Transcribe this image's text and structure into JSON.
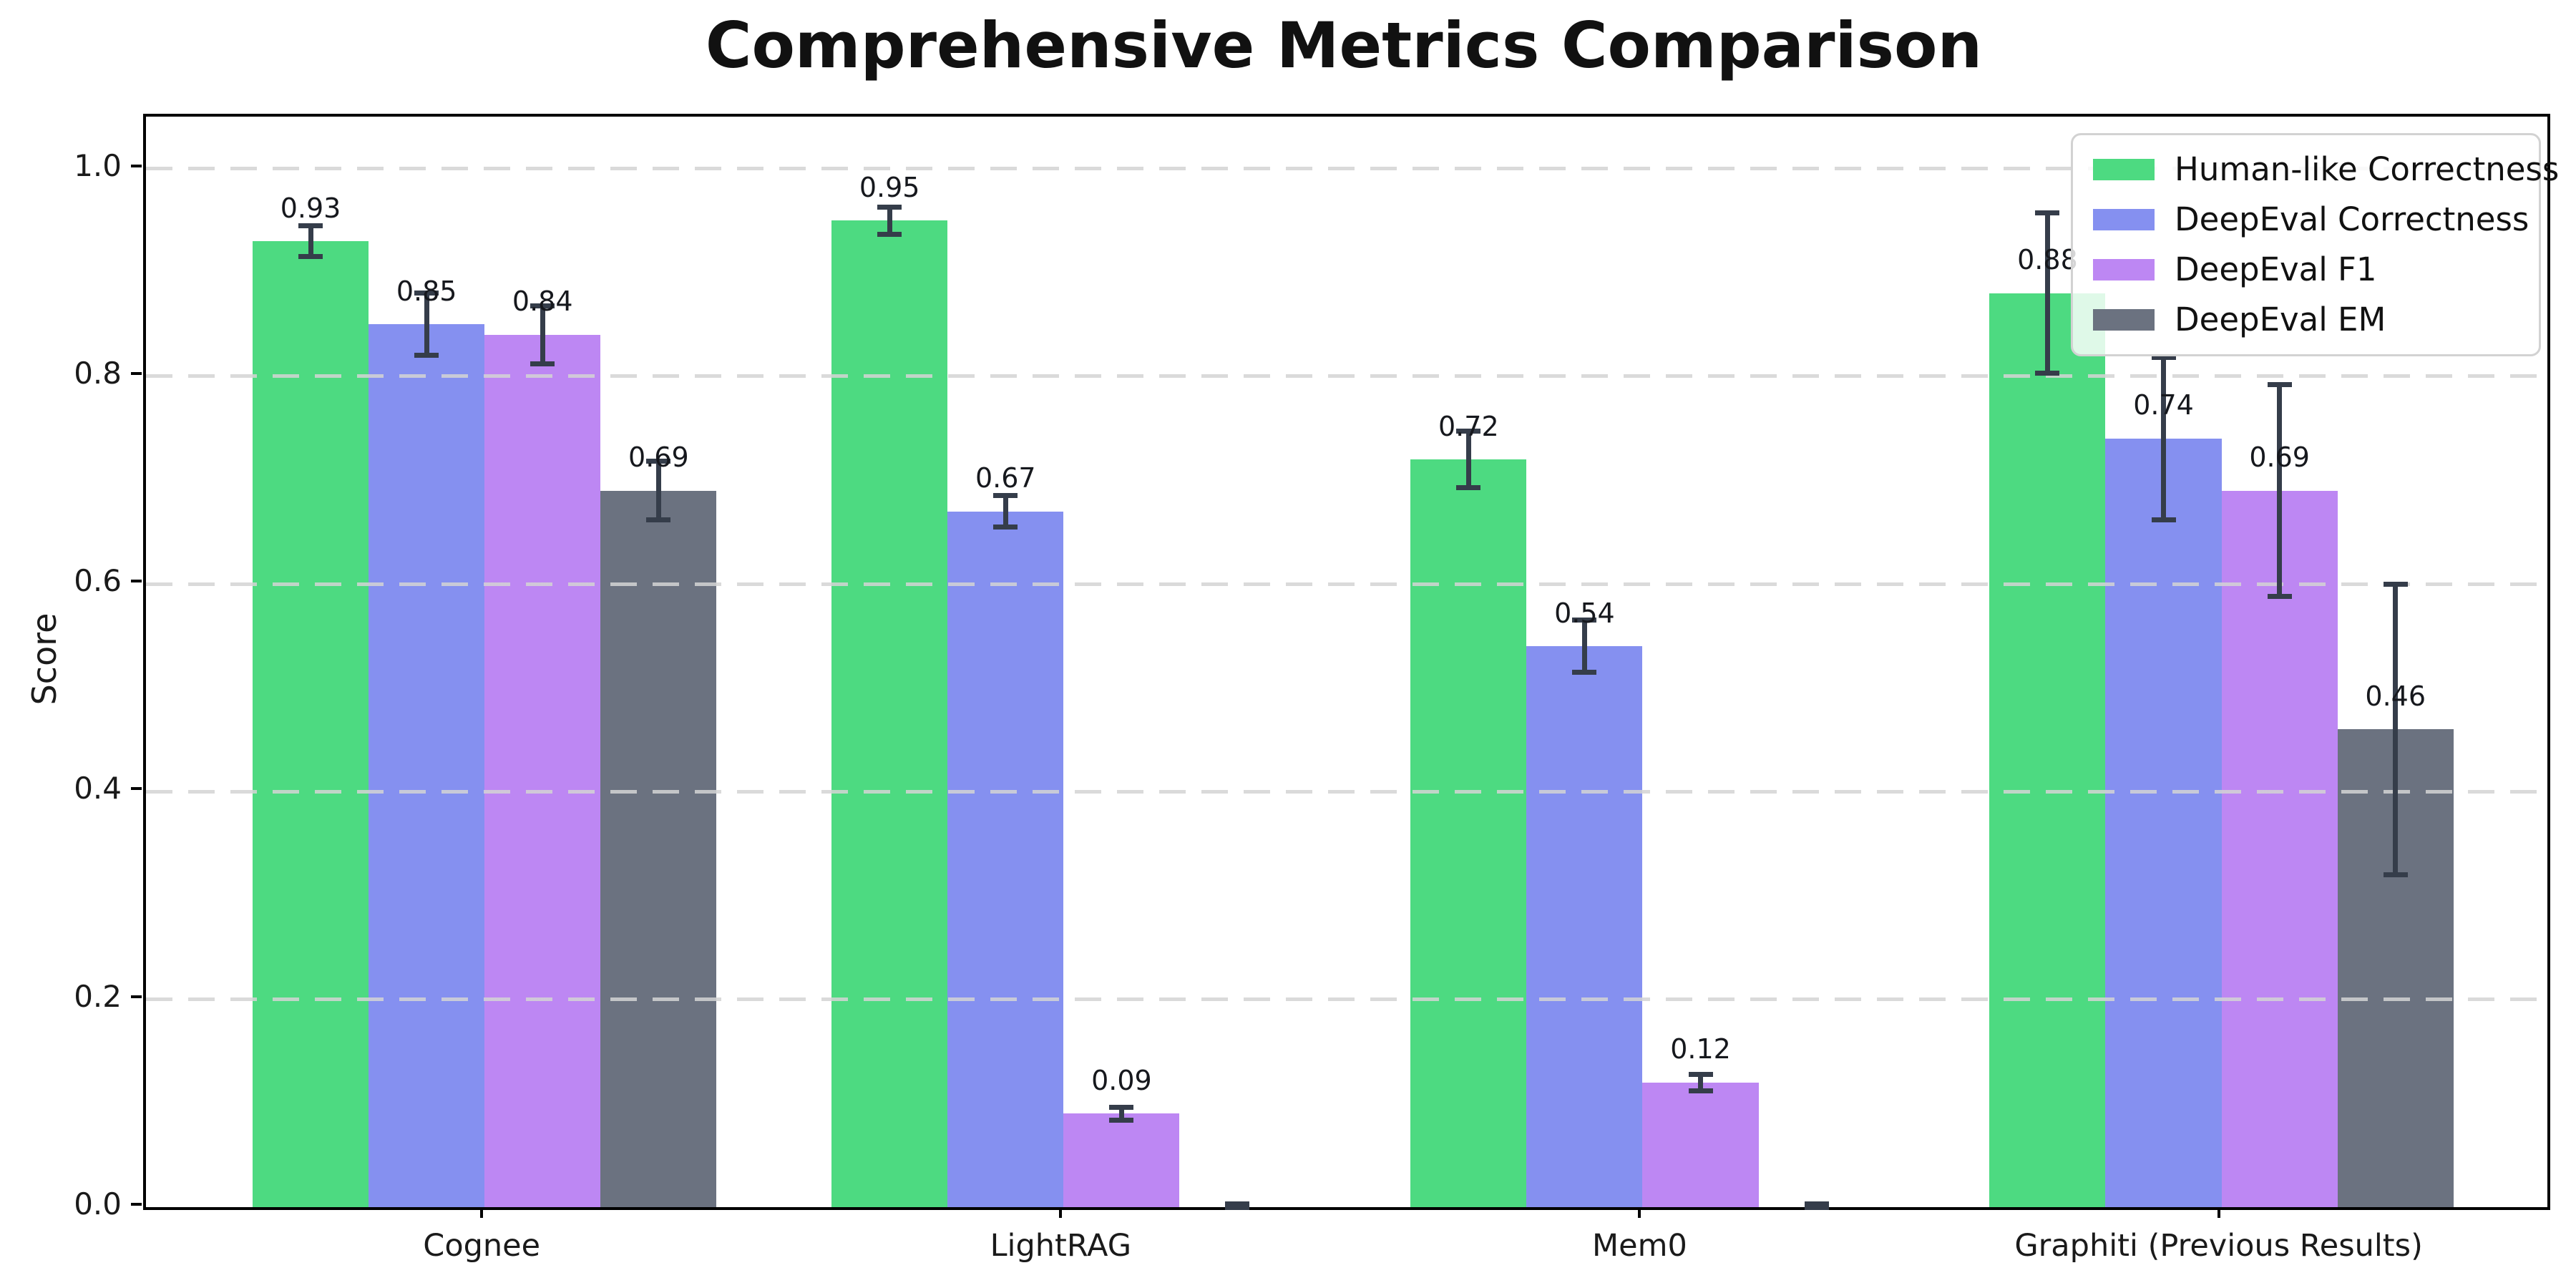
{
  "chart_data": {
    "type": "bar",
    "title": "Comprehensive Metrics Comparison",
    "ylabel": "Score",
    "categories": [
      "Cognee",
      "LightRAG",
      "Mem0",
      "Graphiti (Previous Results)"
    ],
    "yticks": [
      "0.0",
      "0.2",
      "0.4",
      "0.6",
      "0.8",
      "1.0"
    ],
    "ylim": [
      0,
      1.05
    ],
    "grid": true,
    "legend_position": "upper right",
    "error_bar_color": "#353d4a",
    "series": [
      {
        "name": "Human-like Correctness",
        "color": "#4dda81",
        "values": [
          0.93,
          0.95,
          0.72,
          0.88
        ],
        "errors": [
          0.015,
          0.013,
          0.027,
          0.077
        ],
        "labels": [
          "0.93",
          "0.95",
          "0.72",
          "0.88"
        ]
      },
      {
        "name": "DeepEval Correctness",
        "color": "#8590f0",
        "values": [
          0.85,
          0.67,
          0.54,
          0.74
        ],
        "errors": [
          0.03,
          0.015,
          0.025,
          0.078
        ],
        "labels": [
          "0.85",
          "0.67",
          "0.54",
          "0.74"
        ]
      },
      {
        "name": "DeepEval F1",
        "color": "#bd87f3",
        "values": [
          0.84,
          0.09,
          0.12,
          0.69
        ],
        "errors": [
          0.028,
          0.006,
          0.008,
          0.102
        ],
        "labels": [
          "0.84",
          "0.09",
          "0.12",
          "0.69"
        ]
      },
      {
        "name": "DeepEval EM",
        "color": "#6b7280",
        "values": [
          0.69,
          0.0,
          0.0,
          0.46
        ],
        "errors": [
          0.028,
          0.003,
          0.003,
          0.14
        ],
        "labels": [
          "0.69",
          "",
          "",
          "0.46"
        ]
      }
    ]
  }
}
